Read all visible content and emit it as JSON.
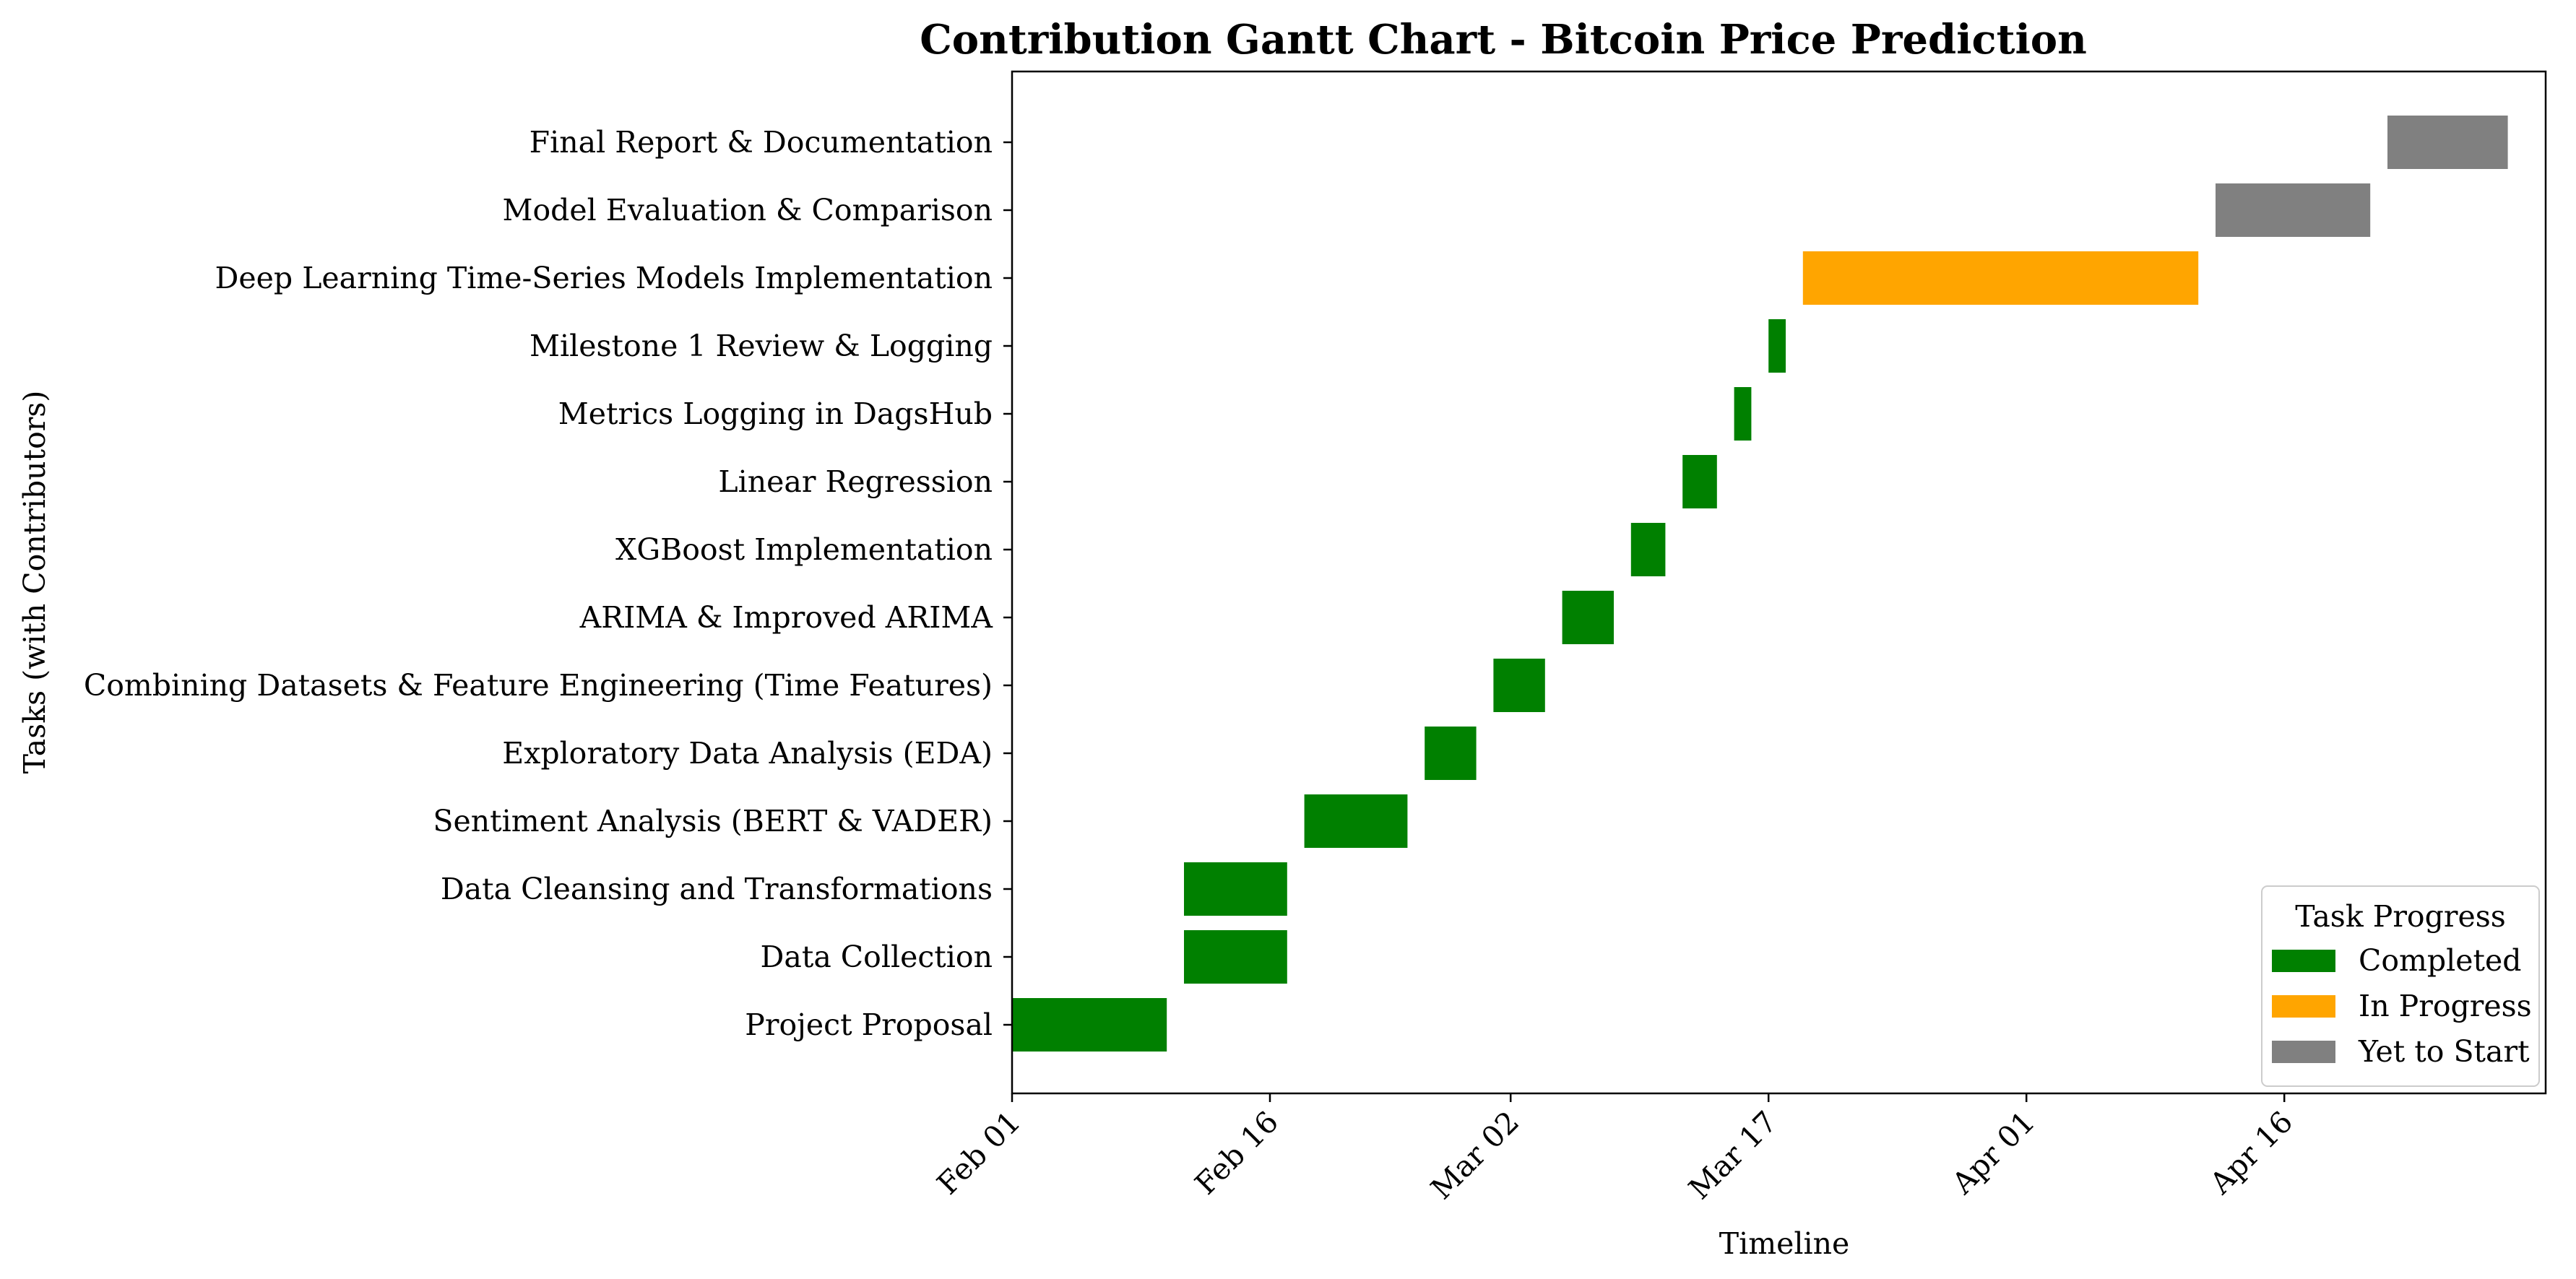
{
  "chart_data": {
    "type": "gantt",
    "title": "Contribution Gantt Chart - Bitcoin Price Prediction",
    "xlabel": "Timeline",
    "ylabel": "Tasks (with Contributors)",
    "xlim": [
      "2025-02-01",
      "2025-04-30"
    ],
    "x_ticks": [
      {
        "date": "2025-02-01",
        "label": "Feb 01"
      },
      {
        "date": "2025-02-16",
        "label": "Feb 16"
      },
      {
        "date": "2025-03-02",
        "label": "Mar 02"
      },
      {
        "date": "2025-03-17",
        "label": "Mar 17"
      },
      {
        "date": "2025-04-01",
        "label": "Apr 01"
      },
      {
        "date": "2025-04-16",
        "label": "Apr 16"
      }
    ],
    "tasks": [
      {
        "name": "Project Proposal",
        "start": "2025-02-01",
        "end": "2025-02-10",
        "status": "Completed"
      },
      {
        "name": "Data Collection",
        "start": "2025-02-11",
        "end": "2025-02-17",
        "status": "Completed"
      },
      {
        "name": "Data Cleansing and Transformations",
        "start": "2025-02-11",
        "end": "2025-02-17",
        "status": "Completed"
      },
      {
        "name": "Sentiment Analysis (BERT & VADER)",
        "start": "2025-02-18",
        "end": "2025-02-24",
        "status": "Completed"
      },
      {
        "name": "Exploratory Data Analysis (EDA)",
        "start": "2025-02-25",
        "end": "2025-02-28",
        "status": "Completed"
      },
      {
        "name": "Combining Datasets & Feature Engineering (Time Features)",
        "start": "2025-03-01",
        "end": "2025-03-04",
        "status": "Completed"
      },
      {
        "name": "ARIMA & Improved ARIMA",
        "start": "2025-03-05",
        "end": "2025-03-08",
        "status": "Completed"
      },
      {
        "name": "XGBoost Implementation",
        "start": "2025-03-09",
        "end": "2025-03-11",
        "status": "Completed"
      },
      {
        "name": "Linear Regression",
        "start": "2025-03-12",
        "end": "2025-03-14",
        "status": "Completed"
      },
      {
        "name": "Metrics Logging in DagsHub",
        "start": "2025-03-15",
        "end": "2025-03-16",
        "status": "Completed"
      },
      {
        "name": "Milestone 1 Review & Logging",
        "start": "2025-03-17",
        "end": "2025-03-18",
        "status": "Completed"
      },
      {
        "name": "Deep Learning Time-Series Models Implementation",
        "start": "2025-03-19",
        "end": "2025-04-11",
        "status": "In Progress"
      },
      {
        "name": "Model Evaluation & Comparison",
        "start": "2025-04-12",
        "end": "2025-04-21",
        "status": "Yet to Start"
      },
      {
        "name": "Final Report & Documentation",
        "start": "2025-04-22",
        "end": "2025-04-29",
        "status": "Yet to Start"
      }
    ],
    "legend": {
      "title": "Task Progress",
      "placement": "lower-right",
      "entries": [
        {
          "label": "Completed",
          "color": "#008000"
        },
        {
          "label": "In Progress",
          "color": "#ffa500"
        },
        {
          "label": "Yet to Start",
          "color": "#808080"
        }
      ]
    },
    "grid": false
  }
}
